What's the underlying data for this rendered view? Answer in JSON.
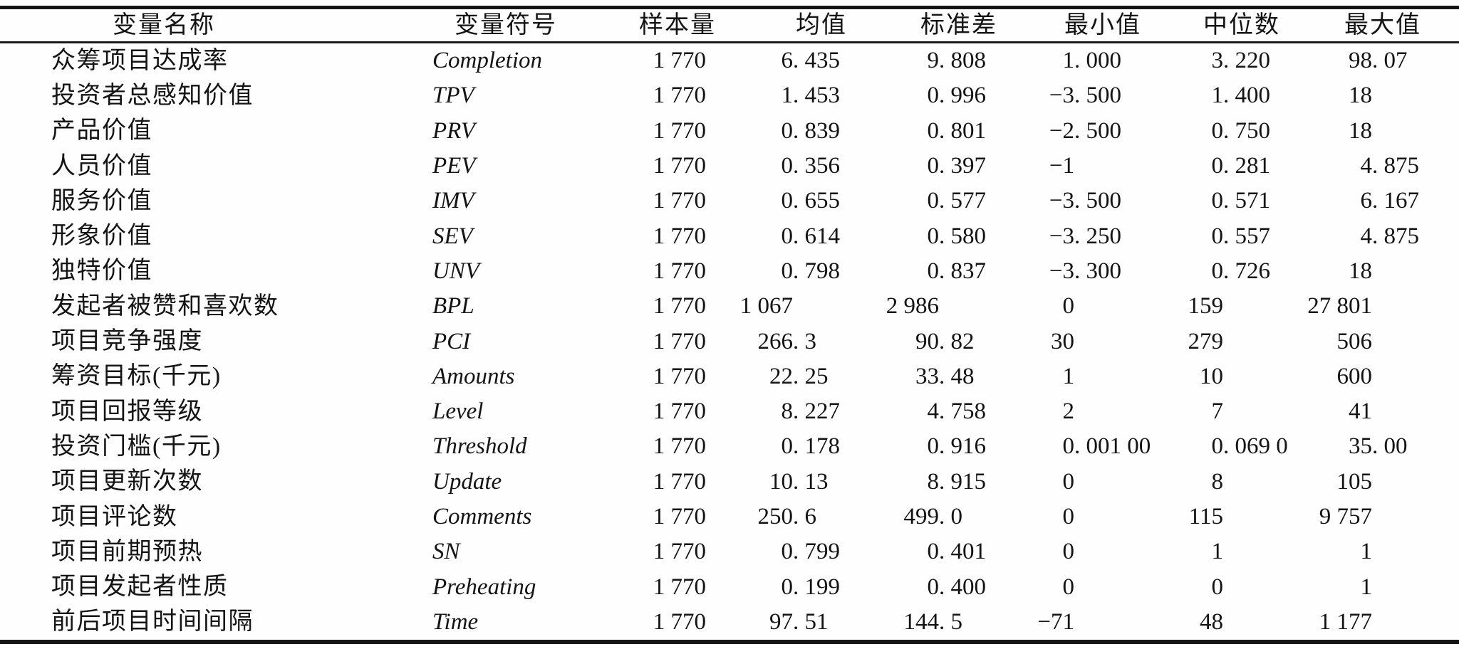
{
  "table": {
    "columns": [
      {
        "key": "name",
        "label": "变量名称"
      },
      {
        "key": "symbol",
        "label": "变量符号"
      },
      {
        "key": "sample",
        "label": "样本量"
      },
      {
        "key": "mean",
        "label": "均值"
      },
      {
        "key": "sd",
        "label": "标准差"
      },
      {
        "key": "min",
        "label": "最小值"
      },
      {
        "key": "median",
        "label": "中位数"
      },
      {
        "key": "max",
        "label": "最大值"
      }
    ],
    "rows": [
      {
        "name": "众筹项目达成率",
        "symbol": "Completion",
        "sample": "1 770",
        "mean": "6.435",
        "sd": "9.808",
        "min": "1.000",
        "median": "3.220",
        "max": "98.07"
      },
      {
        "name": "投资者总感知价值",
        "symbol": "TPV",
        "sample": "1 770",
        "mean": "1.453",
        "sd": "0.996",
        "min": "−3.500",
        "median": "1.400",
        "max": "18"
      },
      {
        "name": "产品价值",
        "symbol": "PRV",
        "sample": "1 770",
        "mean": "0.839",
        "sd": "0.801",
        "min": "−2.500",
        "median": "0.750",
        "max": "18"
      },
      {
        "name": "人员价值",
        "symbol": "PEV",
        "sample": "1 770",
        "mean": "0.356",
        "sd": "0.397",
        "min": "−1",
        "median": "0.281",
        "max": "4.875"
      },
      {
        "name": "服务价值",
        "symbol": "IMV",
        "sample": "1 770",
        "mean": "0.655",
        "sd": "0.577",
        "min": "−3.500",
        "median": "0.571",
        "max": "6.167"
      },
      {
        "name": "形象价值",
        "symbol": "SEV",
        "sample": "1 770",
        "mean": "0.614",
        "sd": "0.580",
        "min": "−3.250",
        "median": "0.557",
        "max": "4.875"
      },
      {
        "name": "独特价值",
        "symbol": "UNV",
        "sample": "1 770",
        "mean": "0.798",
        "sd": "0.837",
        "min": "−3.300",
        "median": "0.726",
        "max": "18"
      },
      {
        "name": "发起者被赞和喜欢数",
        "symbol": "BPL",
        "sample": "1 770",
        "mean": "1 067",
        "sd": "2 986",
        "min": "0",
        "median": "159",
        "max": "27 801"
      },
      {
        "name": "项目竞争强度",
        "symbol": "PCI",
        "sample": "1 770",
        "mean": "266.3",
        "sd": "90.82",
        "min": "30",
        "median": "279",
        "max": "506"
      },
      {
        "name": "筹资目标(千元)",
        "symbol": "Amounts",
        "sample": "1 770",
        "mean": "22.25",
        "sd": "33.48",
        "min": "1",
        "median": "10",
        "max": "600"
      },
      {
        "name": "项目回报等级",
        "symbol": "Level",
        "sample": "1 770",
        "mean": "8.227",
        "sd": "4.758",
        "min": "2",
        "median": "7",
        "max": "41"
      },
      {
        "name": "投资门槛(千元)",
        "symbol": "Threshold",
        "sample": "1 770",
        "mean": "0.178",
        "sd": "0.916",
        "min": "0.001 00",
        "median": "0.069 0",
        "max": "35.00"
      },
      {
        "name": "项目更新次数",
        "symbol": "Update",
        "sample": "1 770",
        "mean": "10.13",
        "sd": "8.915",
        "min": "0",
        "median": "8",
        "max": "105"
      },
      {
        "name": "项目评论数",
        "symbol": "Comments",
        "sample": "1 770",
        "mean": "250.6",
        "sd": "499.0",
        "min": "0",
        "median": "115",
        "max": "9 757"
      },
      {
        "name": "项目前期预热",
        "symbol": "SN",
        "sample": "1 770",
        "mean": "0.799",
        "sd": "0.401",
        "min": "0",
        "median": "1",
        "max": "1"
      },
      {
        "name": "项目发起者性质",
        "symbol": "Preheating",
        "sample": "1 770",
        "mean": "0.199",
        "sd": "0.400",
        "min": "0",
        "median": "0",
        "max": "1"
      },
      {
        "name": "前后项目时间间隔",
        "symbol": "Time",
        "sample": "1 770",
        "mean": "97.51",
        "sd": "144.5",
        "min": "−71",
        "median": "48",
        "max": "1 177"
      }
    ]
  }
}
